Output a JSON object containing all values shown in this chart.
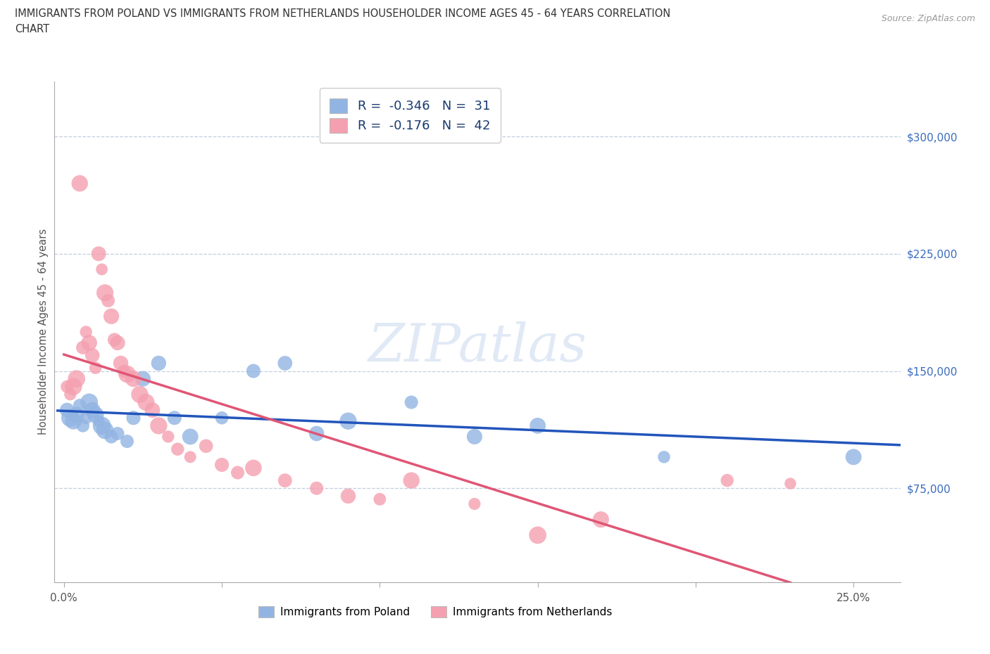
{
  "title_line1": "IMMIGRANTS FROM POLAND VS IMMIGRANTS FROM NETHERLANDS HOUSEHOLDER INCOME AGES 45 - 64 YEARS CORRELATION",
  "title_line2": "CHART",
  "source": "Source: ZipAtlas.com",
  "xlim": [
    -0.003,
    0.265
  ],
  "ylim": [
    15000,
    335000
  ],
  "yticks": [
    75000,
    150000,
    225000,
    300000
  ],
  "ytick_labels": [
    "$75,000",
    "$150,000",
    "$225,000",
    "$300,000"
  ],
  "xticks": [
    0.0,
    0.05,
    0.1,
    0.15,
    0.2,
    0.25
  ],
  "xtick_labels": [
    "0.0%",
    "",
    "",
    "",
    "",
    "25.0%"
  ],
  "poland_color": "#92b4e3",
  "netherlands_color": "#f4a0b0",
  "poland_line_color": "#2255bb",
  "netherlands_line_color": "#e05575",
  "poland_R": -0.346,
  "poland_N": 31,
  "netherlands_R": -0.176,
  "netherlands_N": 42,
  "ylabel": "Householder Income Ages 45 - 64 years",
  "watermark": "ZIPatlas",
  "poland_x": [
    0.001,
    0.002,
    0.003,
    0.004,
    0.005,
    0.006,
    0.007,
    0.008,
    0.009,
    0.01,
    0.011,
    0.012,
    0.013,
    0.015,
    0.017,
    0.02,
    0.022,
    0.025,
    0.03,
    0.035,
    0.04,
    0.05,
    0.06,
    0.07,
    0.08,
    0.09,
    0.11,
    0.13,
    0.15,
    0.19,
    0.25
  ],
  "poland_y": [
    125000,
    120000,
    118000,
    122000,
    128000,
    115000,
    120000,
    130000,
    125000,
    122000,
    118000,
    115000,
    112000,
    108000,
    110000,
    105000,
    120000,
    145000,
    155000,
    120000,
    108000,
    120000,
    150000,
    155000,
    110000,
    118000,
    130000,
    108000,
    115000,
    95000,
    95000
  ],
  "netherlands_x": [
    0.001,
    0.002,
    0.003,
    0.004,
    0.005,
    0.006,
    0.007,
    0.008,
    0.009,
    0.01,
    0.011,
    0.012,
    0.013,
    0.014,
    0.015,
    0.016,
    0.017,
    0.018,
    0.019,
    0.02,
    0.022,
    0.024,
    0.026,
    0.028,
    0.03,
    0.033,
    0.036,
    0.04,
    0.045,
    0.05,
    0.055,
    0.06,
    0.07,
    0.08,
    0.09,
    0.1,
    0.11,
    0.13,
    0.15,
    0.17,
    0.21,
    0.23
  ],
  "netherlands_y": [
    140000,
    135000,
    140000,
    145000,
    270000,
    165000,
    175000,
    168000,
    160000,
    152000,
    225000,
    215000,
    200000,
    195000,
    185000,
    170000,
    168000,
    155000,
    150000,
    148000,
    145000,
    135000,
    130000,
    125000,
    115000,
    108000,
    100000,
    95000,
    102000,
    90000,
    85000,
    88000,
    80000,
    75000,
    70000,
    68000,
    80000,
    65000,
    45000,
    55000,
    80000,
    78000
  ]
}
